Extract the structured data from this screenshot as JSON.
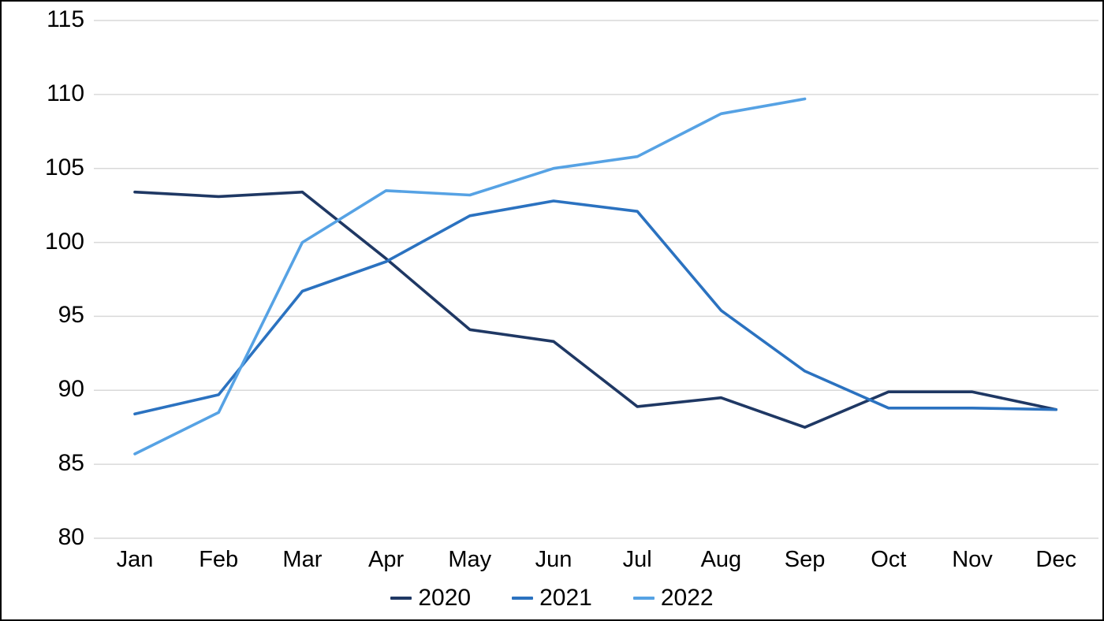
{
  "chart_data": {
    "type": "line",
    "title": "",
    "xlabel": "",
    "ylabel": "",
    "categories": [
      "Jan",
      "Feb",
      "Mar",
      "Apr",
      "May",
      "Jun",
      "Jul",
      "Aug",
      "Sep",
      "Oct",
      "Nov",
      "Dec"
    ],
    "series": [
      {
        "name": "2020",
        "color": "#1f3864",
        "values": [
          103.4,
          103.1,
          103.4,
          98.9,
          94.1,
          93.3,
          88.9,
          89.5,
          87.5,
          89.9,
          89.9,
          88.7
        ]
      },
      {
        "name": "2021",
        "color": "#2b72c0",
        "values": [
          88.4,
          89.7,
          96.7,
          98.7,
          101.8,
          102.8,
          102.1,
          95.4,
          91.3,
          88.8,
          88.8,
          88.7
        ]
      },
      {
        "name": "2022",
        "color": "#56a2e4",
        "values": [
          85.7,
          88.5,
          100.0,
          103.5,
          103.2,
          105.0,
          105.8,
          108.7,
          109.7,
          null,
          null,
          null
        ]
      }
    ],
    "yticks": [
      80,
      85,
      90,
      95,
      100,
      105,
      110,
      115
    ],
    "ylim": [
      80,
      115
    ],
    "grid": "horizontal",
    "gridline_color": "#d9d9d9",
    "legend_position": "bottom-center",
    "background_color": "#ffffff",
    "frame_border_color": "#000000"
  }
}
